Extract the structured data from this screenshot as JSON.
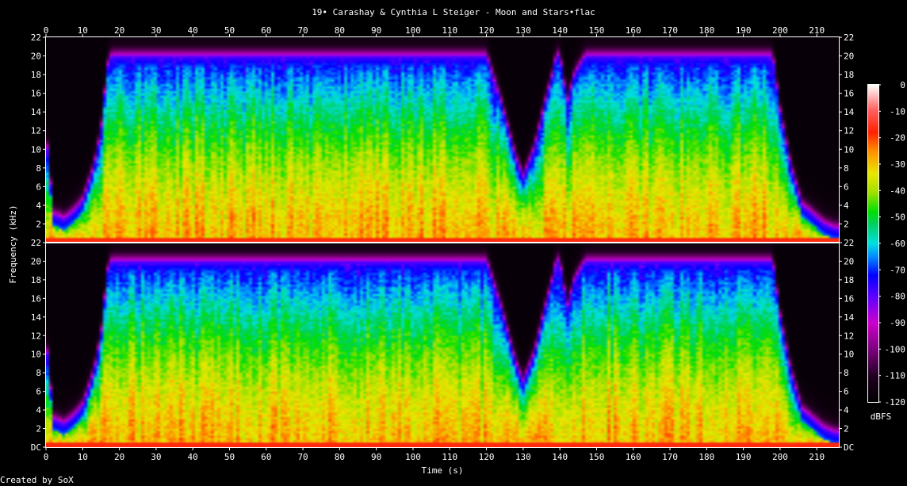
{
  "chart_data": {
    "type": "heatmap",
    "title": "19• Carashay & Cynthia L Steiger - Moon and Stars•flac",
    "xlabel": "Time (s)",
    "ylabel": "Frequency (kHz)",
    "colorbar_label": "dBFS",
    "credit": "Created by SoX",
    "xlim": [
      0,
      216
    ],
    "ylim": [
      0,
      22
    ],
    "x_ticks": [
      0,
      10,
      20,
      30,
      40,
      50,
      60,
      70,
      80,
      90,
      100,
      110,
      120,
      130,
      140,
      150,
      160,
      170,
      180,
      190,
      200,
      210
    ],
    "y_tick_labels": [
      "DC",
      "2",
      "4",
      "6",
      "8",
      "10",
      "12",
      "14",
      "16",
      "18",
      "20",
      "22"
    ],
    "colorbar_ticks": [
      0,
      -10,
      -20,
      -30,
      -40,
      -50,
      -60,
      -70,
      -80,
      -90,
      -100,
      -110,
      -120
    ],
    "colorbar_range": [
      -120,
      0
    ],
    "channels": [
      {
        "name": "",
        "position": "top"
      },
      {
        "name": "",
        "position": "bottom"
      }
    ],
    "spectral_envelope": {
      "time_s": [
        0,
        2,
        5,
        8,
        10,
        13,
        15,
        16,
        17,
        18,
        120,
        124,
        128,
        130,
        133,
        136,
        138,
        139,
        140,
        142,
        144,
        147,
        148,
        150,
        198,
        200,
        203,
        206,
        209,
        212,
        215,
        216
      ],
      "cutoff_khz": [
        12,
        3,
        2.5,
        3.5,
        4.5,
        8,
        12,
        16,
        19.5,
        20,
        20,
        15,
        9,
        7,
        10,
        15,
        18,
        20,
        20,
        15,
        18,
        20,
        20,
        20,
        20,
        14,
        8,
        4,
        3,
        2,
        1.5,
        1.5
      ]
    },
    "colormap": "sox-spectrogram",
    "grid": false
  },
  "colors": {
    "background": "#000000",
    "frame": "#ffffff",
    "text": "#ffffff"
  }
}
